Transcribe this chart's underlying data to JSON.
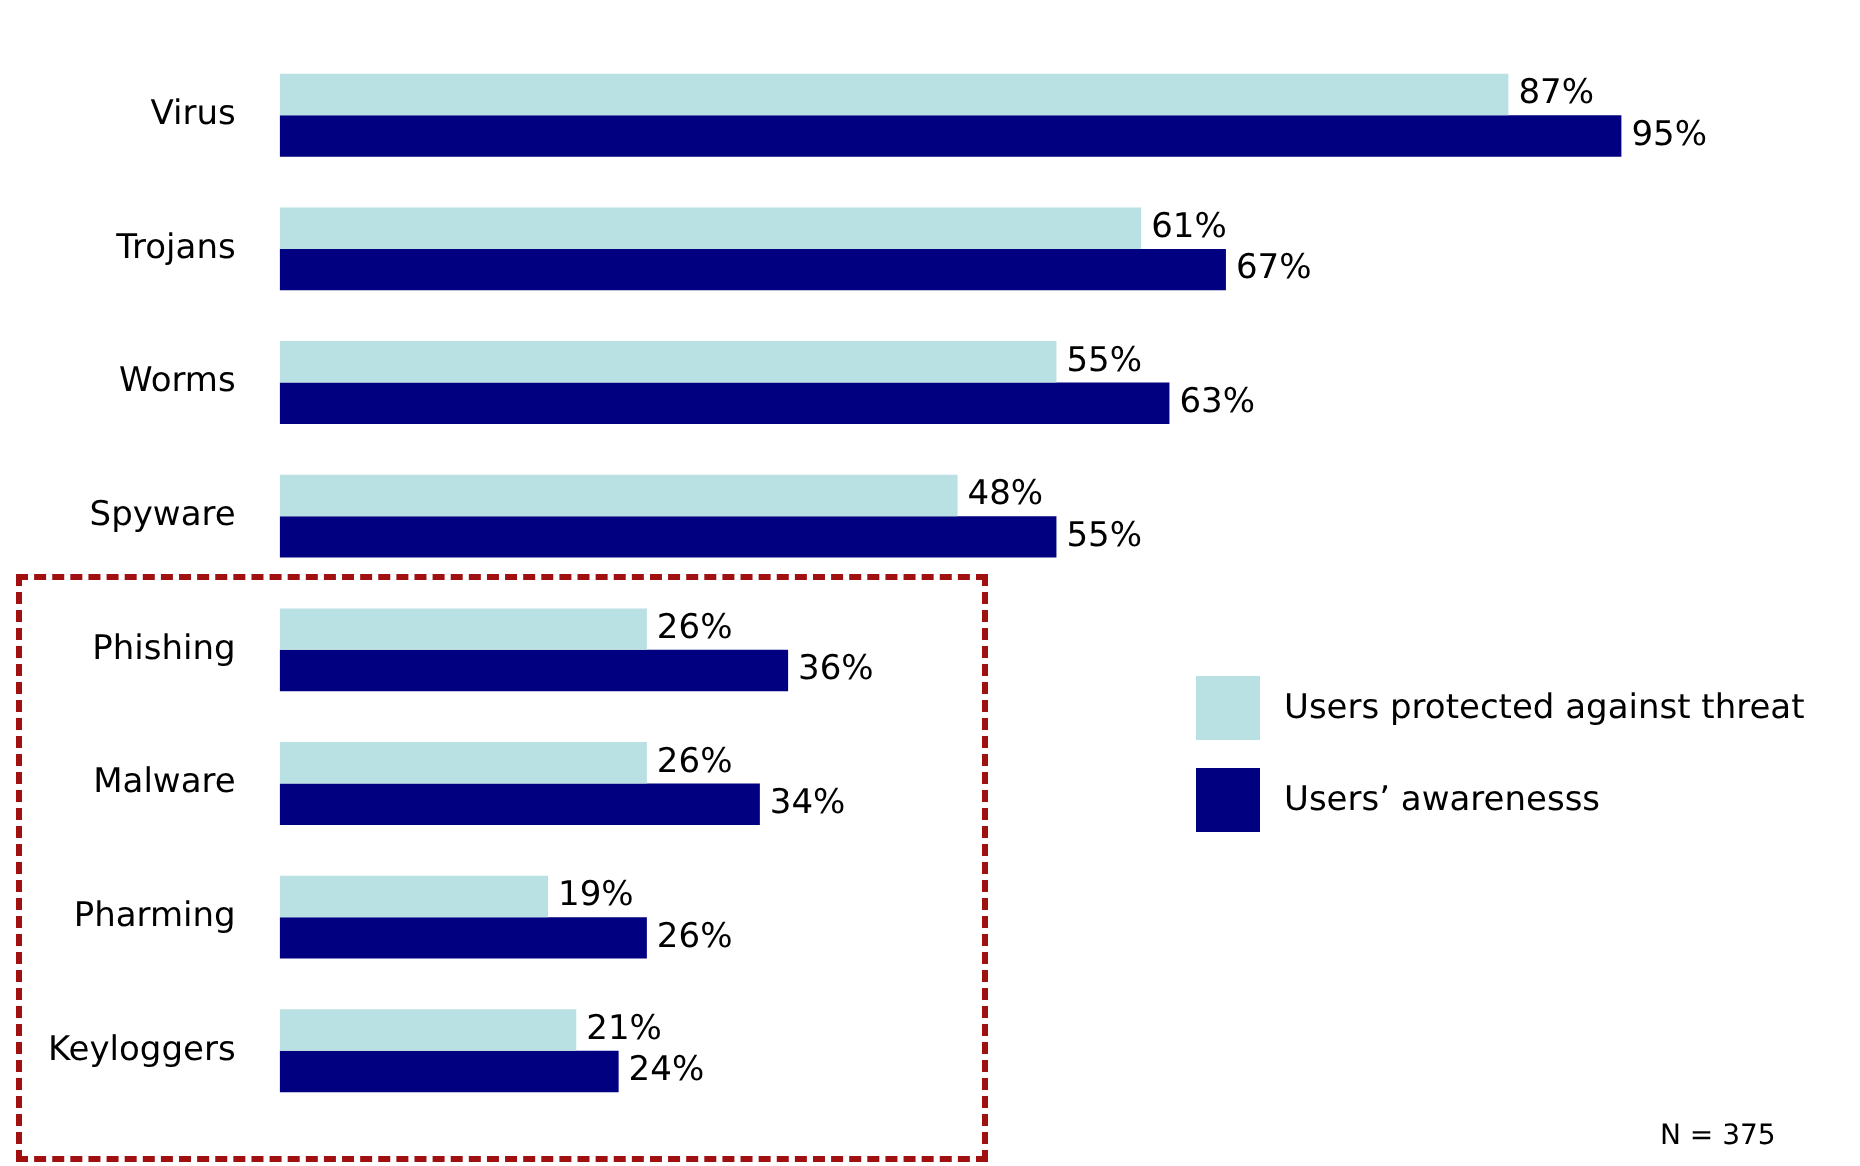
{
  "chart_data": {
    "type": "bar",
    "orientation": "horizontal",
    "categories": [
      "Virus",
      "Trojans",
      "Worms",
      "Spyware",
      "Phishing",
      "Malware",
      "Pharming",
      "Keyloggers"
    ],
    "series": [
      {
        "name": "Users protected against threat",
        "color": "#b9e0e3",
        "values": [
          87,
          61,
          55,
          48,
          26,
          26,
          19,
          21
        ],
        "value_labels": [
          "87%",
          "61%",
          "55%",
          "48%",
          "26%",
          "26%",
          "19%",
          "21%"
        ]
      },
      {
        "name": "Users’ awarenesss",
        "color": "#000080",
        "values": [
          95,
          67,
          63,
          55,
          36,
          34,
          26,
          24
        ],
        "value_labels": [
          "95%",
          "67%",
          "63%",
          "55%",
          "36%",
          "34%",
          "26%",
          "24%"
        ]
      }
    ],
    "legend": "right",
    "annotations": [
      "N = 375"
    ]
  }
}
